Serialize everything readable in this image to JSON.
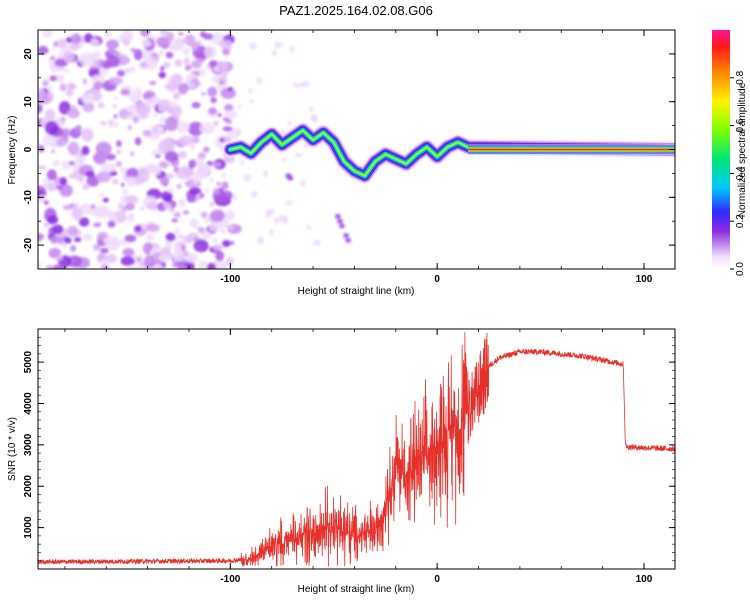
{
  "title": "PAZ1.2025.164.02.08.G06",
  "chart_data": [
    {
      "type": "heatmap",
      "xlabel": "Height of straight line (km)",
      "ylabel": "Frequency (Hz)",
      "xlim": [
        -193,
        115
      ],
      "ylim": [
        -25,
        25
      ],
      "x_ticks": [
        "-100",
        "0",
        "100"
      ],
      "y_ticks": [
        "-20",
        "-10",
        "0",
        "10",
        "20"
      ],
      "colorbar": {
        "label": "Normalized spectral amplitude",
        "range": [
          0,
          1
        ],
        "ticks": [
          "0.0",
          "0.2",
          "0.4",
          "0.6",
          "0.8"
        ]
      },
      "trace": {
        "x": [
          -100,
          -95,
          -90,
          -85,
          -80,
          -75,
          -70,
          -65,
          -60,
          -55,
          -50,
          -45,
          -40,
          -35,
          -30,
          -25,
          -20,
          -15,
          -10,
          -5,
          0,
          5,
          10,
          15,
          115
        ],
        "y": [
          0,
          0.5,
          -0.8,
          1.5,
          3.2,
          1.0,
          2.5,
          4.0,
          2.0,
          3.5,
          1.5,
          -2.5,
          -4.5,
          -5.5,
          -2.5,
          -1.0,
          -2.0,
          -3.0,
          -1.0,
          0.5,
          -1.5,
          0.5,
          1.5,
          0.5,
          0
        ]
      }
    },
    {
      "type": "line",
      "xlabel": "Height of straight line (km)",
      "ylabel": "SNR (10 * v/v)",
      "xlim": [
        -193,
        115
      ],
      "ylim": [
        0,
        5800
      ],
      "x_ticks": [
        "-100",
        "0",
        "100"
      ],
      "y_ticks": [
        "1000",
        "2000",
        "3000",
        "4000",
        "5000"
      ],
      "series": [
        {
          "color": "#e8302a",
          "x": [
            -193,
            -100,
            -90,
            -80,
            -70,
            -60,
            -50,
            -40,
            -30,
            -25,
            -20,
            -15,
            -10,
            -5,
            0,
            5,
            10,
            15,
            20,
            25,
            30,
            40,
            50,
            60,
            70,
            80,
            90,
            91,
            92,
            115
          ],
          "y": [
            170,
            200,
            250,
            550,
            700,
            900,
            1000,
            800,
            900,
            1600,
            2500,
            2300,
            2500,
            2700,
            3000,
            3300,
            3500,
            3800,
            4300,
            4900,
            5100,
            5250,
            5250,
            5200,
            5150,
            5050,
            4950,
            3000,
            2950,
            2900
          ]
        }
      ]
    }
  ]
}
